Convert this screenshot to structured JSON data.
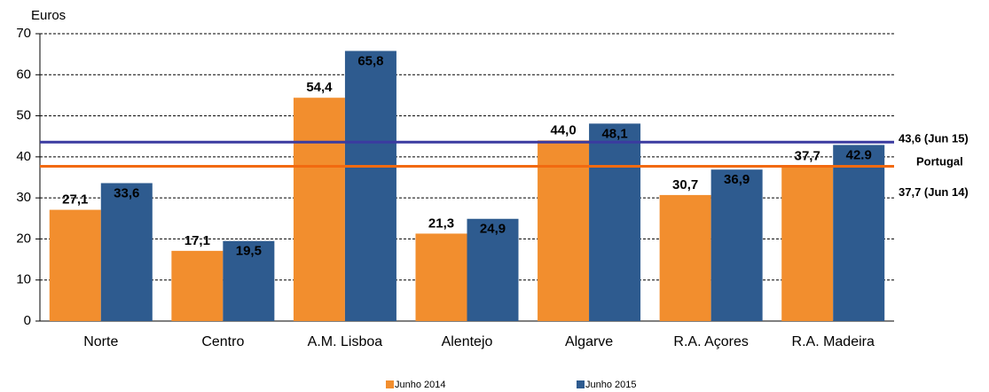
{
  "chart_data": {
    "type": "bar",
    "y_label": "Euros",
    "categories": [
      "Norte",
      "Centro",
      "A.M. Lisboa",
      "Alentejo",
      "Algarve",
      "R.A. Açores",
      "R.A. Madeira"
    ],
    "series": [
      {
        "name": "Junho 2014",
        "color": "#f28e2e",
        "values": [
          27.1,
          17.1,
          54.4,
          21.3,
          44.0,
          30.7,
          37.7
        ],
        "value_labels": [
          "27,1",
          "17,1",
          "54,4",
          "21,3",
          "44,0",
          "30,7",
          "37,7"
        ]
      },
      {
        "name": "Junho 2015",
        "color": "#2e5b8f",
        "values": [
          33.6,
          19.5,
          65.8,
          24.9,
          48.1,
          36.9,
          42.9
        ],
        "value_labels": [
          "33,6",
          "19,5",
          "65,8",
          "24,9",
          "48,1",
          "36,9",
          "42.9"
        ]
      }
    ],
    "reference_title": "Portugal",
    "reference_lines": [
      {
        "value": 43.6,
        "label": "43,6 (Jun 15)",
        "color": "#3b3ba0",
        "label_color": "#2e5b8f"
      },
      {
        "value": 37.7,
        "label": "37,7 (Jun 14)",
        "color": "#f26a10",
        "label_color": "#f26a10"
      }
    ],
    "ylim": [
      0,
      70
    ],
    "yticks": [
      0,
      10,
      20,
      30,
      40,
      50,
      60,
      70
    ],
    "grid": true
  }
}
